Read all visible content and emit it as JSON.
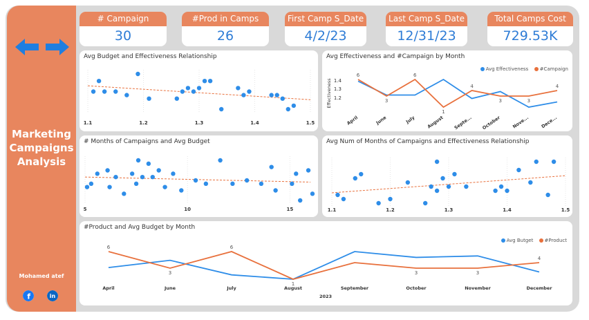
{
  "sidebar": {
    "title_line1": "Marketing",
    "title_line2": "Campaigns",
    "title_line3": "Analysis",
    "author": "Mohamed atef",
    "nav": [
      "arrow-left-icon",
      "arrow-right-icon"
    ],
    "social": [
      "facebook-icon",
      "linkedin-icon"
    ]
  },
  "kpis": [
    {
      "label": "# Campaign",
      "value": "30"
    },
    {
      "label": "#Prod in Camps",
      "value": "26"
    },
    {
      "label": "First Camp S_Date",
      "value": "4/2/23"
    },
    {
      "label": "Last Camp S_Date",
      "value": "12/31/23"
    },
    {
      "label": "Total Camps Cost",
      "value": "729.53K"
    }
  ],
  "colors": {
    "blue": "#2e8de8",
    "orange": "#e8703c",
    "accent": "#e8865e",
    "kpi_value": "#2e7cd6"
  },
  "chart_data": [
    {
      "type": "scatter",
      "title": "Avg Budget and Effectiveness Relationship",
      "xticks": [
        "1.1",
        "1.2",
        "1.3",
        "1.4",
        "1.5"
      ],
      "xlim": [
        1.1,
        1.5
      ],
      "trendline": true,
      "points": [
        [
          1.11,
          0.05
        ],
        [
          1.12,
          0.08
        ],
        [
          1.13,
          0.05
        ],
        [
          1.15,
          0.05
        ],
        [
          1.17,
          0.04
        ],
        [
          1.19,
          0.1
        ],
        [
          1.21,
          0.03
        ],
        [
          1.26,
          0.03
        ],
        [
          1.27,
          0.05
        ],
        [
          1.28,
          0.06
        ],
        [
          1.29,
          0.05
        ],
        [
          1.3,
          0.06
        ],
        [
          1.31,
          0.08
        ],
        [
          1.32,
          0.08
        ],
        [
          1.34,
          0.0
        ],
        [
          1.37,
          0.06
        ],
        [
          1.38,
          0.04
        ],
        [
          1.39,
          0.05
        ],
        [
          1.43,
          0.04
        ],
        [
          1.44,
          0.04
        ],
        [
          1.45,
          0.03
        ],
        [
          1.46,
          0.0
        ],
        [
          1.47,
          0.01
        ]
      ]
    },
    {
      "type": "line",
      "title": "Avg Effectiveness and #Campaign by Month",
      "ylabel": "Effectiveness",
      "yticks": [
        "1.4",
        "1.3",
        "1.2"
      ],
      "categories": [
        "April",
        "June",
        "July",
        "August",
        "Septe...",
        "October",
        "Nove...",
        "Dece..."
      ],
      "series": [
        {
          "name": "Avg Effectiveness",
          "values": [
            1.38,
            1.3,
            1.3,
            1.39,
            1.28,
            1.32,
            1.23,
            1.26
          ]
        },
        {
          "name": "#Campaign",
          "values": [
            6,
            3,
            6,
            1,
            4,
            3,
            3,
            4
          ]
        }
      ],
      "data_labels": [
        "6",
        "3",
        "6",
        "1",
        "4",
        "3",
        "3",
        "4"
      ]
    },
    {
      "type": "scatter",
      "title": "# Months of Campaigns and Avg Budget",
      "xticks": [
        "5",
        "10",
        "15"
      ],
      "xlim": [
        5,
        16
      ],
      "trendline": true,
      "points": [
        [
          5.1,
          0.05
        ],
        [
          5.3,
          0.06
        ],
        [
          5.6,
          0.09
        ],
        [
          6.1,
          0.1
        ],
        [
          6.2,
          0.05
        ],
        [
          6.5,
          0.08
        ],
        [
          6.9,
          0.03
        ],
        [
          7.3,
          0.09
        ],
        [
          7.5,
          0.06
        ],
        [
          7.6,
          0.13
        ],
        [
          7.8,
          0.08
        ],
        [
          8.1,
          0.12
        ],
        [
          8.3,
          0.08
        ],
        [
          8.6,
          0.1
        ],
        [
          8.9,
          0.05
        ],
        [
          9.3,
          0.09
        ],
        [
          9.7,
          0.04
        ],
        [
          10.4,
          0.07
        ],
        [
          10.9,
          0.06
        ],
        [
          11.6,
          0.13
        ],
        [
          12.2,
          0.06
        ],
        [
          12.9,
          0.07
        ],
        [
          13.6,
          0.06
        ],
        [
          14.1,
          0.11
        ],
        [
          14.3,
          0.04
        ],
        [
          15.1,
          0.06
        ],
        [
          15.3,
          0.09
        ],
        [
          15.5,
          0.01
        ],
        [
          15.9,
          0.1
        ],
        [
          16.1,
          0.03
        ]
      ]
    },
    {
      "type": "scatter",
      "title": "Avg Num of Months of Campaigns and Effectiveness Relationship",
      "xticks": [
        "1.1",
        "1.2",
        "1.3",
        "1.4",
        "1.5"
      ],
      "xlim": [
        1.1,
        1.5
      ],
      "trendline": true,
      "points": [
        [
          1.11,
          0.05
        ],
        [
          1.12,
          0.04
        ],
        [
          1.14,
          0.09
        ],
        [
          1.15,
          0.1
        ],
        [
          1.18,
          0.03
        ],
        [
          1.2,
          0.04
        ],
        [
          1.23,
          0.08
        ],
        [
          1.26,
          0.03
        ],
        [
          1.27,
          0.07
        ],
        [
          1.28,
          0.06
        ],
        [
          1.28,
          0.13
        ],
        [
          1.29,
          0.09
        ],
        [
          1.3,
          0.07
        ],
        [
          1.31,
          0.1
        ],
        [
          1.33,
          0.07
        ],
        [
          1.38,
          0.06
        ],
        [
          1.39,
          0.07
        ],
        [
          1.4,
          0.06
        ],
        [
          1.42,
          0.11
        ],
        [
          1.44,
          0.08
        ],
        [
          1.45,
          0.13
        ],
        [
          1.47,
          0.05
        ],
        [
          1.48,
          0.13
        ]
      ]
    },
    {
      "type": "line",
      "title": "#Product and Avg Budget by Month",
      "xlabel": "2023",
      "categories": [
        "April",
        "June",
        "July",
        "August",
        "September",
        "October",
        "November",
        "December"
      ],
      "series": [
        {
          "name": "Avg Butget",
          "values": [
            32,
            37,
            27,
            24,
            43,
            39,
            40,
            29
          ]
        },
        {
          "name": "#Product",
          "values": [
            6,
            3,
            6,
            1,
            4,
            3,
            3,
            4
          ]
        }
      ],
      "data_labels": [
        "6",
        "3",
        "6",
        "1",
        "",
        "3",
        "3",
        "4"
      ]
    }
  ]
}
